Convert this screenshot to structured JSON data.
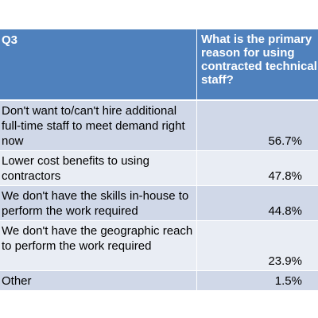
{
  "table": {
    "header": {
      "question_id": "Q3",
      "question_text": "What is the primary reason for using contracted technical staff?"
    },
    "rows": [
      {
        "label": "Don't want to/can't hire additional full-time staff to meet demand right now",
        "value": "56.7%"
      },
      {
        "label": "Lower cost benefits to using contractors",
        "value": "47.8%"
      },
      {
        "label": "We don't have the skills in-house to perform the work required",
        "value": "44.8%"
      },
      {
        "label": "We don't have the geographic reach to perform the work required",
        "value": "23.9%"
      },
      {
        "label": "Other",
        "value": "1.5%"
      }
    ]
  },
  "chart_data": {
    "type": "table",
    "title": "",
    "columns": [
      "Q3",
      "What is the primary reason for using contracted technical staff?"
    ],
    "categories": [
      "Don't want to/can't hire additional full-time staff to meet demand right now",
      "Lower cost benefits to using contractors",
      "We don't have the skills in-house to perform the work required",
      "We don't have the geographic reach to perform the work required",
      "Other"
    ],
    "values": [
      56.7,
      47.8,
      44.8,
      23.9,
      1.5
    ],
    "unit": "%"
  },
  "colors": {
    "header_bg": "#4f81bd",
    "row_dark": "#d0d8e8",
    "row_light": "#e9edf4"
  }
}
